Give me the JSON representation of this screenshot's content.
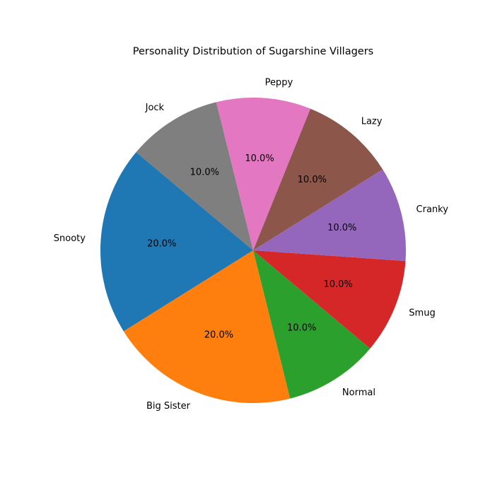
{
  "chart_data": {
    "type": "pie",
    "title": "Personality Distribution of Sugarshine Villagers",
    "slices": [
      {
        "label": "Snooty",
        "value": 20.0,
        "pct_label": "20.0%",
        "color": "#1f77b4"
      },
      {
        "label": "Big Sister",
        "value": 20.0,
        "pct_label": "20.0%",
        "color": "#ff7f0e"
      },
      {
        "label": "Normal",
        "value": 10.0,
        "pct_label": "10.0%",
        "color": "#2ca02c"
      },
      {
        "label": "Smug",
        "value": 10.0,
        "pct_label": "10.0%",
        "color": "#d62728"
      },
      {
        "label": "Cranky",
        "value": 10.0,
        "pct_label": "10.0%",
        "color": "#9467bd"
      },
      {
        "label": "Lazy",
        "value": 10.0,
        "pct_label": "10.0%",
        "color": "#8c564b"
      },
      {
        "label": "Peppy",
        "value": 10.0,
        "pct_label": "10.0%",
        "color": "#e377c2"
      },
      {
        "label": "Jock",
        "value": 10.0,
        "pct_label": "10.0%",
        "color": "#7f7f7f"
      }
    ],
    "start_angle_deg": 140,
    "direction": "counterclockwise",
    "legend": "none"
  }
}
